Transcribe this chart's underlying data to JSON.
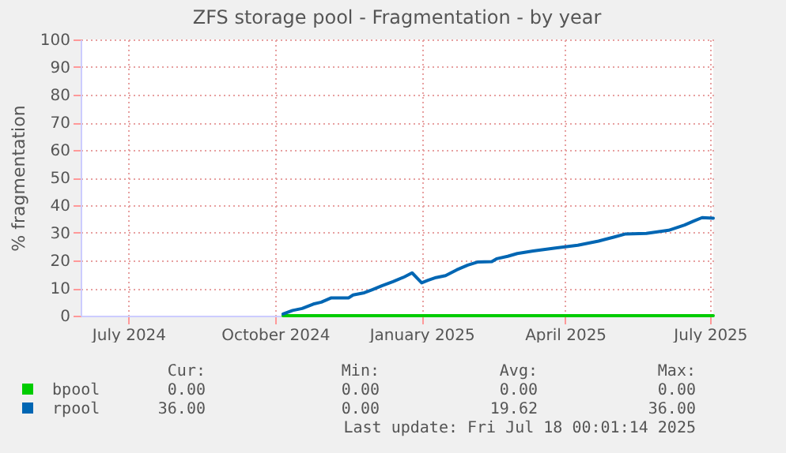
{
  "chart_data": {
    "type": "line",
    "title": "ZFS storage pool - Fragmentation - by year",
    "ylabel": "% fragmentation",
    "xlim": [
      "2024-06-01",
      "2025-07-03"
    ],
    "xticks": [
      {
        "value": "2024-07-01",
        "label": "July 2024"
      },
      {
        "value": "2024-10-01",
        "label": "October 2024"
      },
      {
        "value": "2025-01-01",
        "label": "January 2025"
      },
      {
        "value": "2025-04-01",
        "label": "April 2025"
      },
      {
        "value": "2025-07-01",
        "label": "July 2025"
      }
    ],
    "ylim": [
      0,
      100
    ],
    "yticks": [
      0,
      10,
      20,
      30,
      40,
      50,
      60,
      70,
      80,
      90,
      100
    ],
    "grid": true,
    "legend": "bottom",
    "series": [
      {
        "name": "bpool",
        "color": "#00cc00",
        "x": [
          "2024-10-06",
          "2025-07-03"
        ],
        "values": [
          0,
          0
        ]
      },
      {
        "name": "rpool",
        "color": "#0066b3",
        "x": [
          "2024-10-06",
          "2024-10-12",
          "2024-10-18",
          "2024-10-25",
          "2024-10-30",
          "2024-11-05",
          "2024-11-16",
          "2024-11-19",
          "2024-11-26",
          "2024-12-01",
          "2024-12-07",
          "2024-12-14",
          "2024-12-21",
          "2024-12-26",
          "2025-01-01",
          "2025-01-05",
          "2025-01-10",
          "2025-01-16",
          "2025-01-23",
          "2025-01-30",
          "2025-02-05",
          "2025-02-14",
          "2025-02-17",
          "2025-02-24",
          "2025-03-02",
          "2025-03-12",
          "2025-03-26",
          "2025-04-09",
          "2025-04-22",
          "2025-05-02",
          "2025-05-09",
          "2025-05-22",
          "2025-06-05",
          "2025-06-15",
          "2025-06-21",
          "2025-06-26",
          "2025-07-03"
        ],
        "values": [
          0.6,
          1.9,
          2.6,
          4.2,
          4.9,
          6.4,
          6.4,
          7.5,
          8.3,
          9.4,
          10.8,
          12.3,
          14,
          15.5,
          11.9,
          12.8,
          13.8,
          14.5,
          16.6,
          18.3,
          19.4,
          19.6,
          20.6,
          21.5,
          22.5,
          23.4,
          24.5,
          25.5,
          27,
          28.5,
          29.6,
          29.8,
          30.9,
          32.8,
          34.3,
          35.5,
          35.3
        ]
      }
    ],
    "annotations": [
      "Cur:",
      "Min:",
      "Avg:",
      "Max:",
      "0.00",
      "0.00",
      "0.00",
      "0.00",
      "36.00",
      "0.00",
      "19.62",
      "36.00",
      "Last update: Fri Jul 18 00:01:14 2025"
    ]
  }
}
